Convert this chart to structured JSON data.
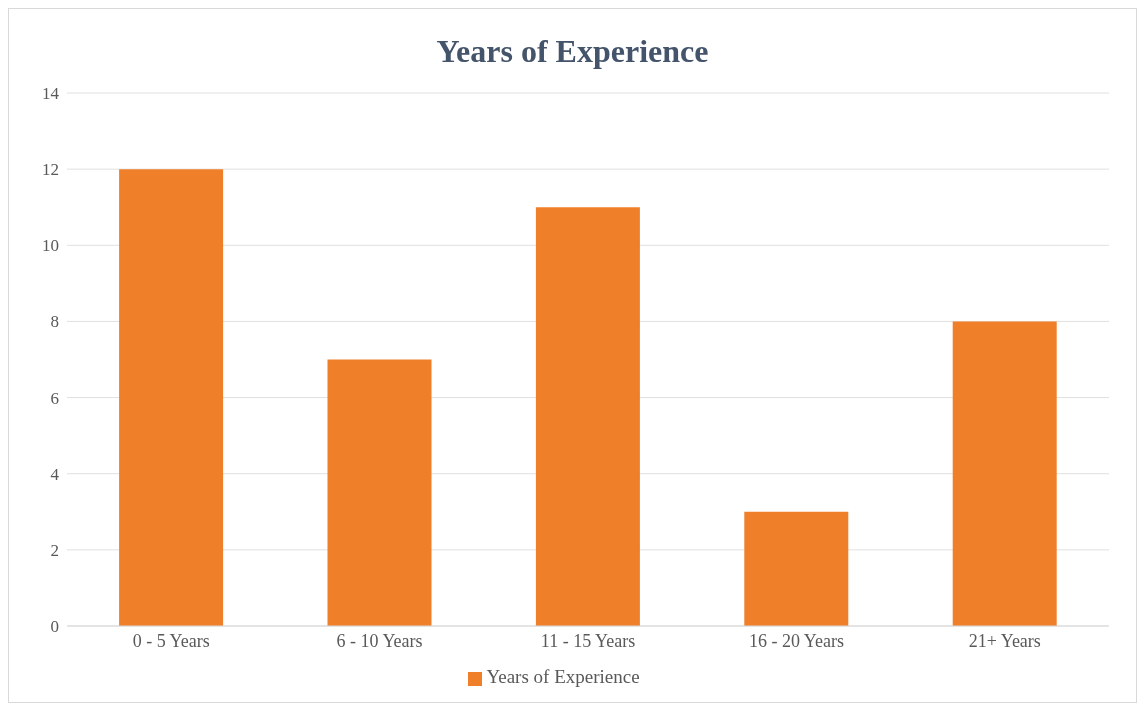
{
  "chart_data": {
    "type": "bar",
    "title": "Years of Experience",
    "categories": [
      "0 - 5 Years",
      "6 - 10 Years",
      "11 - 15 Years",
      "16 - 20 Years",
      "21+ Years"
    ],
    "series": [
      {
        "name": "Years of Experience",
        "color": "#f07f2a",
        "values": [
          12,
          7,
          11,
          3,
          8
        ]
      }
    ],
    "ylim": [
      0,
      14
    ],
    "yticks": [
      0,
      2,
      4,
      6,
      8,
      10,
      12,
      14
    ],
    "grid": "y",
    "legend": "bottom"
  }
}
